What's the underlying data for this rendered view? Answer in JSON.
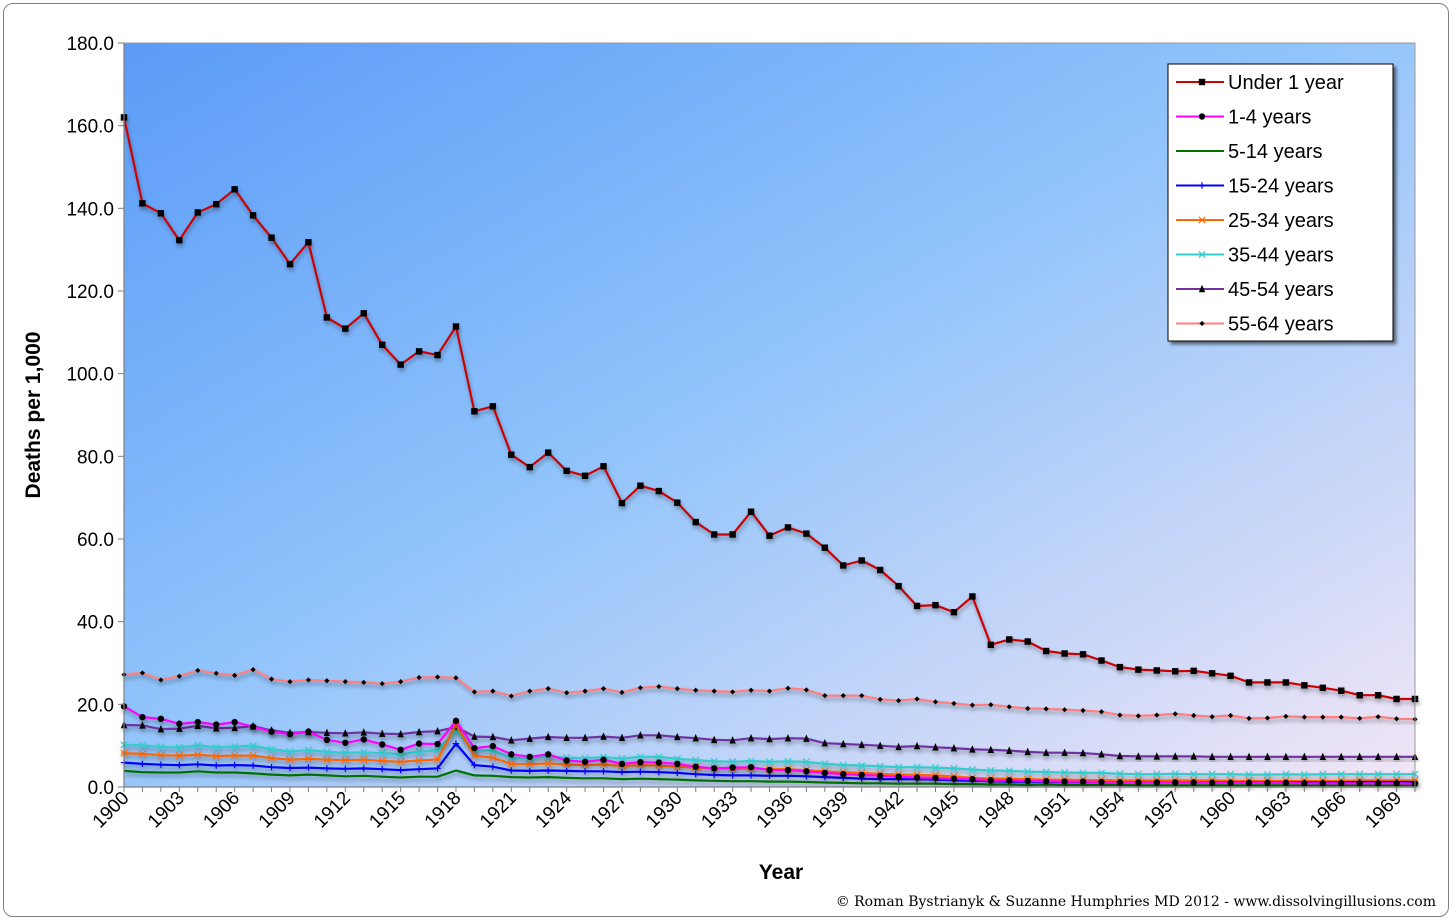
{
  "chart_data": {
    "type": "line",
    "title": "",
    "xlabel": "Year",
    "ylabel": "Deaths per 1,000",
    "ylim": [
      0,
      180
    ],
    "yticks": [
      "0.0",
      "20.0",
      "40.0",
      "60.0",
      "80.0",
      "100.0",
      "120.0",
      "140.0",
      "160.0",
      "180.0"
    ],
    "xlim": [
      1900,
      1970
    ],
    "xticks": [
      "1900",
      "1903",
      "1906",
      "1909",
      "1912",
      "1915",
      "1918",
      "1921",
      "1924",
      "1927",
      "1930",
      "1933",
      "1936",
      "1939",
      "1942",
      "1945",
      "1948",
      "1951",
      "1954",
      "1957",
      "1960",
      "1963",
      "1966",
      "1969"
    ],
    "legend_position": "top-right",
    "grid": false,
    "background_gradient": [
      "#5b9bf8",
      "#8fc3fb",
      "#f3e6f6"
    ],
    "x": [
      1900,
      1901,
      1902,
      1903,
      1904,
      1905,
      1906,
      1907,
      1908,
      1909,
      1910,
      1911,
      1912,
      1913,
      1914,
      1915,
      1916,
      1917,
      1918,
      1919,
      1920,
      1921,
      1922,
      1923,
      1924,
      1925,
      1926,
      1927,
      1928,
      1929,
      1930,
      1931,
      1932,
      1933,
      1934,
      1935,
      1936,
      1937,
      1938,
      1939,
      1940,
      1941,
      1942,
      1943,
      1944,
      1945,
      1946,
      1947,
      1948,
      1949,
      1950,
      1951,
      1952,
      1953,
      1954,
      1955,
      1956,
      1957,
      1958,
      1959,
      1960,
      1961,
      1962,
      1963,
      1964,
      1965,
      1966,
      1967,
      1968,
      1969,
      1970
    ],
    "series": [
      {
        "name": "Under 1 year",
        "color": "#cc0000",
        "marker": "square",
        "values": [
          162.0,
          141.2,
          138.8,
          132.3,
          139.0,
          141.0,
          144.6,
          138.3,
          132.9,
          126.5,
          131.8,
          113.6,
          110.9,
          114.6,
          107.0,
          102.2,
          105.4,
          104.5,
          111.4,
          90.9,
          92.1,
          80.4,
          77.4,
          80.9,
          76.5,
          75.3,
          77.6,
          68.7,
          72.9,
          71.6,
          68.8,
          64.1,
          61.1,
          61.1,
          66.6,
          60.8,
          62.8,
          61.3,
          57.9,
          53.6,
          54.8,
          52.5,
          48.6,
          43.8,
          44.0,
          42.3,
          46.1,
          34.4,
          35.7,
          35.2,
          32.9,
          32.3,
          32.1,
          30.6,
          29.0,
          28.4,
          28.2,
          28.0,
          28.1,
          27.5,
          26.9,
          25.3,
          25.3,
          25.3,
          24.6,
          24.0,
          23.3,
          22.2,
          22.2,
          21.3,
          21.3
        ]
      },
      {
        "name": "1-4 years",
        "color": "#ff00ff",
        "marker": "circle",
        "values": [
          19.5,
          16.9,
          16.5,
          15.3,
          15.7,
          15.1,
          15.7,
          14.6,
          13.4,
          12.8,
          13.4,
          11.4,
          10.7,
          11.5,
          10.3,
          9.0,
          10.5,
          10.4,
          16.0,
          9.4,
          9.9,
          7.9,
          7.3,
          7.9,
          6.4,
          6.1,
          6.6,
          5.6,
          6.0,
          5.9,
          5.6,
          4.9,
          4.5,
          4.7,
          4.8,
          4.1,
          4.1,
          3.8,
          3.4,
          3.1,
          2.9,
          2.7,
          2.5,
          2.3,
          2.2,
          2.0,
          1.9,
          1.6,
          1.6,
          1.5,
          1.4,
          1.3,
          1.3,
          1.2,
          1.1,
          1.1,
          1.1,
          1.1,
          1.1,
          1.0,
          1.0,
          1.0,
          1.0,
          1.0,
          0.9,
          0.9,
          0.9,
          0.9,
          0.9,
          0.9,
          0.8
        ]
      },
      {
        "name": "5-14 years",
        "color": "#007000",
        "marker": "none",
        "values": [
          3.9,
          3.6,
          3.5,
          3.5,
          3.8,
          3.5,
          3.5,
          3.3,
          3.0,
          2.8,
          3.0,
          2.8,
          2.6,
          2.7,
          2.5,
          2.3,
          2.5,
          2.5,
          4.0,
          2.8,
          2.7,
          2.4,
          2.3,
          2.4,
          2.2,
          2.1,
          2.1,
          1.9,
          2.0,
          1.9,
          1.8,
          1.6,
          1.5,
          1.4,
          1.4,
          1.3,
          1.3,
          1.2,
          1.1,
          1.0,
          0.9,
          0.9,
          0.8,
          0.8,
          0.8,
          0.7,
          0.7,
          0.6,
          0.6,
          0.5,
          0.6,
          0.5,
          0.5,
          0.5,
          0.5,
          0.4,
          0.4,
          0.4,
          0.4,
          0.4,
          0.4,
          0.4,
          0.4,
          0.4,
          0.4,
          0.4,
          0.4,
          0.4,
          0.4,
          0.4,
          0.4
        ]
      },
      {
        "name": "15-24 years",
        "color": "#0000ff",
        "marker": "plus",
        "values": [
          5.9,
          5.6,
          5.4,
          5.3,
          5.5,
          5.2,
          5.3,
          5.2,
          4.8,
          4.6,
          4.7,
          4.5,
          4.4,
          4.5,
          4.3,
          4.1,
          4.3,
          4.5,
          10.5,
          5.3,
          4.9,
          4.0,
          3.9,
          4.0,
          3.9,
          3.8,
          3.8,
          3.6,
          3.7,
          3.6,
          3.4,
          3.1,
          2.9,
          2.8,
          2.8,
          2.7,
          2.7,
          2.6,
          2.4,
          2.2,
          2.0,
          1.9,
          1.9,
          1.9,
          1.8,
          1.6,
          1.5,
          1.4,
          1.3,
          1.3,
          1.3,
          1.2,
          1.2,
          1.2,
          1.1,
          1.1,
          1.1,
          1.1,
          1.1,
          1.1,
          1.1,
          1.1,
          1.1,
          1.1,
          1.1,
          1.1,
          1.1,
          1.2,
          1.2,
          1.2,
          1.2
        ]
      },
      {
        "name": "25-34 years",
        "color": "#ff6600",
        "marker": "asterisk",
        "values": [
          8.2,
          8.0,
          7.7,
          7.6,
          7.8,
          7.5,
          7.6,
          7.6,
          7.0,
          6.6,
          6.8,
          6.6,
          6.5,
          6.6,
          6.3,
          6.1,
          6.4,
          6.7,
          15.0,
          7.6,
          7.1,
          5.6,
          5.5,
          5.7,
          5.4,
          5.3,
          5.4,
          5.1,
          5.3,
          5.2,
          4.9,
          4.7,
          4.5,
          4.4,
          4.5,
          4.3,
          4.3,
          4.1,
          3.8,
          3.6,
          3.4,
          3.2,
          3.0,
          2.9,
          2.8,
          2.6,
          2.2,
          2.1,
          2.0,
          1.9,
          1.8,
          1.8,
          1.7,
          1.7,
          1.6,
          1.6,
          1.6,
          1.6,
          1.6,
          1.6,
          1.5,
          1.5,
          1.5,
          1.5,
          1.5,
          1.5,
          1.5,
          1.6,
          1.6,
          1.6,
          1.6
        ]
      },
      {
        "name": "35-44 years",
        "color": "#33cccc",
        "marker": "cross",
        "values": [
          10.2,
          10.1,
          9.7,
          9.6,
          10.1,
          9.6,
          9.8,
          10.0,
          9.1,
          8.6,
          8.9,
          8.5,
          8.3,
          8.4,
          8.2,
          7.9,
          8.5,
          8.9,
          13.5,
          8.9,
          8.8,
          7.1,
          7.0,
          7.4,
          7.1,
          7.0,
          7.2,
          6.9,
          7.3,
          7.3,
          6.8,
          6.5,
          6.2,
          6.1,
          6.3,
          6.1,
          6.2,
          6.1,
          5.6,
          5.3,
          5.2,
          5.0,
          4.8,
          4.8,
          4.7,
          4.5,
          4.2,
          4.0,
          3.9,
          3.7,
          3.6,
          3.5,
          3.4,
          3.4,
          3.2,
          3.1,
          3.1,
          3.2,
          3.1,
          3.1,
          3.1,
          3.0,
          3.0,
          3.1,
          3.0,
          3.1,
          3.1,
          3.1,
          3.1,
          3.1,
          3.1
        ]
      },
      {
        "name": "45-54 years",
        "color": "#7030a0",
        "marker": "triangle",
        "values": [
          15.0,
          14.9,
          14.0,
          14.1,
          14.8,
          14.2,
          14.3,
          14.7,
          13.7,
          13.1,
          13.3,
          13.1,
          13.0,
          13.2,
          12.9,
          12.8,
          13.3,
          13.5,
          14.5,
          12.2,
          12.1,
          11.3,
          11.7,
          12.1,
          11.9,
          11.9,
          12.2,
          11.9,
          12.5,
          12.5,
          12.1,
          11.8,
          11.4,
          11.3,
          11.8,
          11.6,
          11.8,
          11.7,
          10.6,
          10.4,
          10.2,
          10.0,
          9.7,
          9.9,
          9.6,
          9.4,
          9.1,
          9.0,
          8.8,
          8.5,
          8.3,
          8.3,
          8.2,
          7.9,
          7.5,
          7.4,
          7.4,
          7.4,
          7.4,
          7.3,
          7.3,
          7.3,
          7.3,
          7.3,
          7.3,
          7.3,
          7.3,
          7.3,
          7.3,
          7.3,
          7.3
        ]
      },
      {
        "name": "55-64 years",
        "color": "#ff7f7f",
        "marker": "diamond",
        "values": [
          27.2,
          27.6,
          25.9,
          26.8,
          28.2,
          27.5,
          27.0,
          28.4,
          26.1,
          25.5,
          25.9,
          25.7,
          25.5,
          25.3,
          25.0,
          25.5,
          26.5,
          26.6,
          26.4,
          23.0,
          23.2,
          22.0,
          23.2,
          23.8,
          22.8,
          23.2,
          23.8,
          22.9,
          24.0,
          24.3,
          23.8,
          23.4,
          23.2,
          23.0,
          23.4,
          23.2,
          23.9,
          23.5,
          22.1,
          22.1,
          22.1,
          21.2,
          20.9,
          21.3,
          20.6,
          20.2,
          19.8,
          19.9,
          19.4,
          19.0,
          18.9,
          18.7,
          18.5,
          18.2,
          17.4,
          17.2,
          17.4,
          17.7,
          17.3,
          17.0,
          17.3,
          16.6,
          16.7,
          17.1,
          16.9,
          16.9,
          16.9,
          16.6,
          17.0,
          16.5,
          16.4
        ]
      }
    ]
  },
  "footer": {
    "copyright": "© Roman Bystrianyk & Suzanne Humphries MD 2012 - www.dissolvingillusions.com"
  }
}
